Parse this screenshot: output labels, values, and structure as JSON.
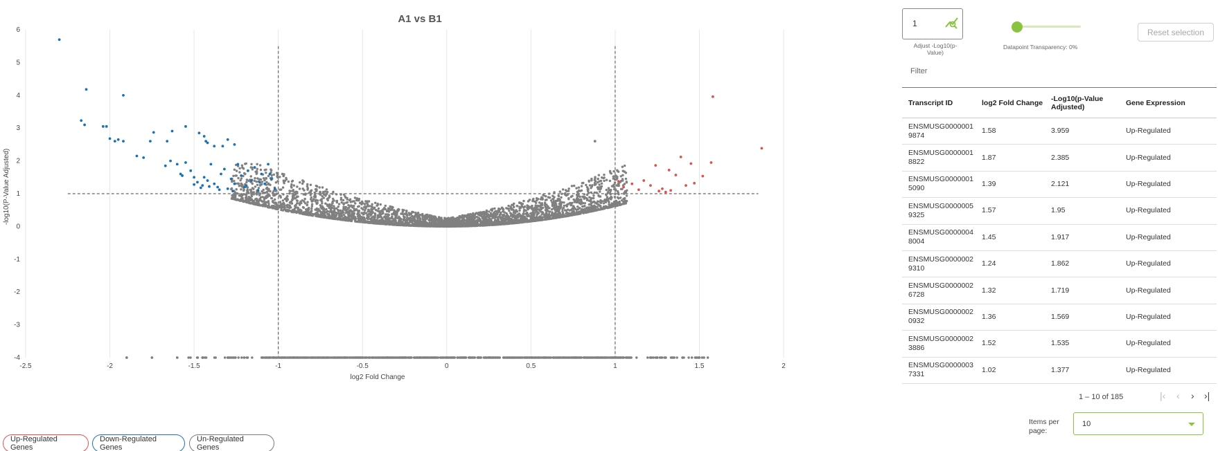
{
  "chart_data": {
    "type": "scatter",
    "title": "A1 vs B1",
    "xlabel": "log2 Fold Change",
    "ylabel": "-log10(P-Value Adjusted)",
    "xlim": [
      -2.5,
      2
    ],
    "ylim": [
      -4,
      6
    ],
    "x_ticks": [
      "-2.5",
      "-2",
      "-1.5",
      "-1",
      "-0.5",
      "0",
      "0.5",
      "1",
      "1.5",
      "2"
    ],
    "y_ticks": [
      "6",
      "5",
      "4",
      "3",
      "2",
      "1",
      "0",
      "-1",
      "-2",
      "-3",
      "-4"
    ],
    "thresholds": {
      "fold_change": [
        -1,
        1
      ],
      "neg_log10_p": 1
    },
    "grid": true,
    "colors": {
      "up": "#e0514d",
      "down": "#1a72b5",
      "un": "#808080"
    },
    "series": [
      {
        "name": "Up-Regulated Genes",
        "points": [
          [
            1.58,
            3.959
          ],
          [
            1.87,
            2.385
          ],
          [
            1.39,
            2.121
          ],
          [
            1.57,
            1.95
          ],
          [
            1.45,
            1.917
          ],
          [
            1.24,
            1.862
          ],
          [
            1.32,
            1.719
          ],
          [
            1.36,
            1.569
          ],
          [
            1.52,
            1.535
          ],
          [
            1.02,
            1.377
          ],
          [
            1.1,
            1.3
          ],
          [
            1.17,
            1.4
          ],
          [
            1.21,
            1.25
          ],
          [
            1.28,
            1.15
          ],
          [
            1.33,
            1.1
          ],
          [
            1.42,
            1.25
          ],
          [
            1.47,
            1.32
          ],
          [
            1.05,
            1.2
          ],
          [
            1.14,
            1.12
          ],
          [
            1.26,
            1.08
          ],
          [
            1.3,
            1.05
          ]
        ]
      },
      {
        "name": "Down-Regulated Genes",
        "points": [
          [
            -2.3,
            5.7
          ],
          [
            -2.14,
            4.18
          ],
          [
            -1.92,
            4.0
          ],
          [
            -2.17,
            3.23
          ],
          [
            -2.15,
            3.1
          ],
          [
            -2.04,
            3.05
          ],
          [
            -2.02,
            3.05
          ],
          [
            -2.0,
            2.68
          ],
          [
            -1.95,
            2.65
          ],
          [
            -1.92,
            2.6
          ],
          [
            -1.97,
            2.6
          ],
          [
            -1.84,
            2.15
          ],
          [
            -1.8,
            2.1
          ],
          [
            -1.76,
            2.6
          ],
          [
            -1.74,
            2.87
          ],
          [
            -1.66,
            2.6
          ],
          [
            -1.63,
            2.91
          ],
          [
            -1.55,
            3.05
          ],
          [
            -1.47,
            2.85
          ],
          [
            -1.44,
            2.75
          ],
          [
            -1.43,
            2.6
          ],
          [
            -1.42,
            2.55
          ],
          [
            -1.38,
            2.45
          ],
          [
            -1.33,
            2.45
          ],
          [
            -1.3,
            2.65
          ],
          [
            -1.26,
            2.5
          ],
          [
            -1.67,
            1.85
          ],
          [
            -1.64,
            2.0
          ],
          [
            -1.6,
            1.9
          ],
          [
            -1.58,
            1.6
          ],
          [
            -1.55,
            1.95
          ],
          [
            -1.52,
            1.7
          ],
          [
            -1.5,
            1.5
          ],
          [
            -1.48,
            1.35
          ],
          [
            -1.45,
            1.25
          ],
          [
            -1.42,
            1.4
          ],
          [
            -1.4,
            1.9
          ],
          [
            -1.38,
            1.3
          ],
          [
            -1.36,
            1.2
          ],
          [
            -1.34,
            1.6
          ],
          [
            -1.32,
            1.75
          ],
          [
            -1.3,
            1.15
          ],
          [
            -1.28,
            1.45
          ],
          [
            -1.26,
            1.3
          ],
          [
            -1.24,
            1.9
          ],
          [
            -1.22,
            1.55
          ],
          [
            -1.2,
            1.2
          ],
          [
            -1.18,
            1.7
          ],
          [
            -1.16,
            1.4
          ],
          [
            -1.14,
            1.8
          ],
          [
            -1.12,
            1.1
          ],
          [
            -1.1,
            1.6
          ],
          [
            -1.08,
            1.3
          ],
          [
            -1.06,
            1.9
          ],
          [
            -1.04,
            1.45
          ],
          [
            -1.02,
            1.15
          ],
          [
            -1.5,
            1.28
          ],
          [
            -1.46,
            1.18
          ],
          [
            -1.41,
            1.22
          ],
          [
            -1.35,
            1.12
          ],
          [
            -1.27,
            1.08
          ],
          [
            -1.19,
            1.25
          ],
          [
            -1.11,
            1.35
          ],
          [
            -1.05,
            1.6
          ],
          [
            -1.57,
            1.55
          ],
          [
            -1.44,
            1.5
          ]
        ]
      },
      {
        "name": "Un-Regulated Genes",
        "points": [
          [
            0.88,
            2.6
          ],
          [
            -1.9,
            -4
          ],
          [
            -1.75,
            -4
          ],
          [
            -1.6,
            -4
          ],
          [
            -1.45,
            -4
          ],
          [
            -1.3,
            -4
          ],
          [
            1.3,
            -4
          ],
          [
            1.4,
            -4
          ],
          [
            1.5,
            -4
          ],
          [
            1.25,
            -4
          ]
        ]
      }
    ]
  },
  "legend": {
    "up": "Up-Regulated Genes",
    "down": "Down-Regulated Genes",
    "un": "Un-Regulated Genes"
  },
  "controls": {
    "adjust_value": "1",
    "adjust_label": "Adjust -Log10(p-Value)",
    "transparency_level": 0,
    "transparency_label": "Datapoint Transparency: 0%",
    "reset_label": "Reset selection",
    "filter_label": "Filter",
    "accent_color": "#8ac33d"
  },
  "table": {
    "headers": [
      "Transcript ID",
      "log2 Fold Change",
      "-Log10(p-Value Adjusted)",
      "Gene Expression"
    ],
    "rows": [
      [
        "ENSMUSG00000019874",
        "1.58",
        "3.959",
        "Up-Regulated"
      ],
      [
        "ENSMUSG00000018822",
        "1.87",
        "2.385",
        "Up-Regulated"
      ],
      [
        "ENSMUSG00000015090",
        "1.39",
        "2.121",
        "Up-Regulated"
      ],
      [
        "ENSMUSG00000059325",
        "1.57",
        "1.95",
        "Up-Regulated"
      ],
      [
        "ENSMUSG00000048004",
        "1.45",
        "1.917",
        "Up-Regulated"
      ],
      [
        "ENSMUSG00000029310",
        "1.24",
        "1.862",
        "Up-Regulated"
      ],
      [
        "ENSMUSG00000026728",
        "1.32",
        "1.719",
        "Up-Regulated"
      ],
      [
        "ENSMUSG00000020932",
        "1.36",
        "1.569",
        "Up-Regulated"
      ],
      [
        "ENSMUSG00000023886",
        "1.52",
        "1.535",
        "Up-Regulated"
      ],
      [
        "ENSMUSG00000037331",
        "1.02",
        "1.377",
        "Up-Regulated"
      ]
    ]
  },
  "paginator": {
    "range_label": "1 – 10 of 185",
    "items_per_page_label": "Items per page:",
    "items_per_page_value": "10"
  }
}
